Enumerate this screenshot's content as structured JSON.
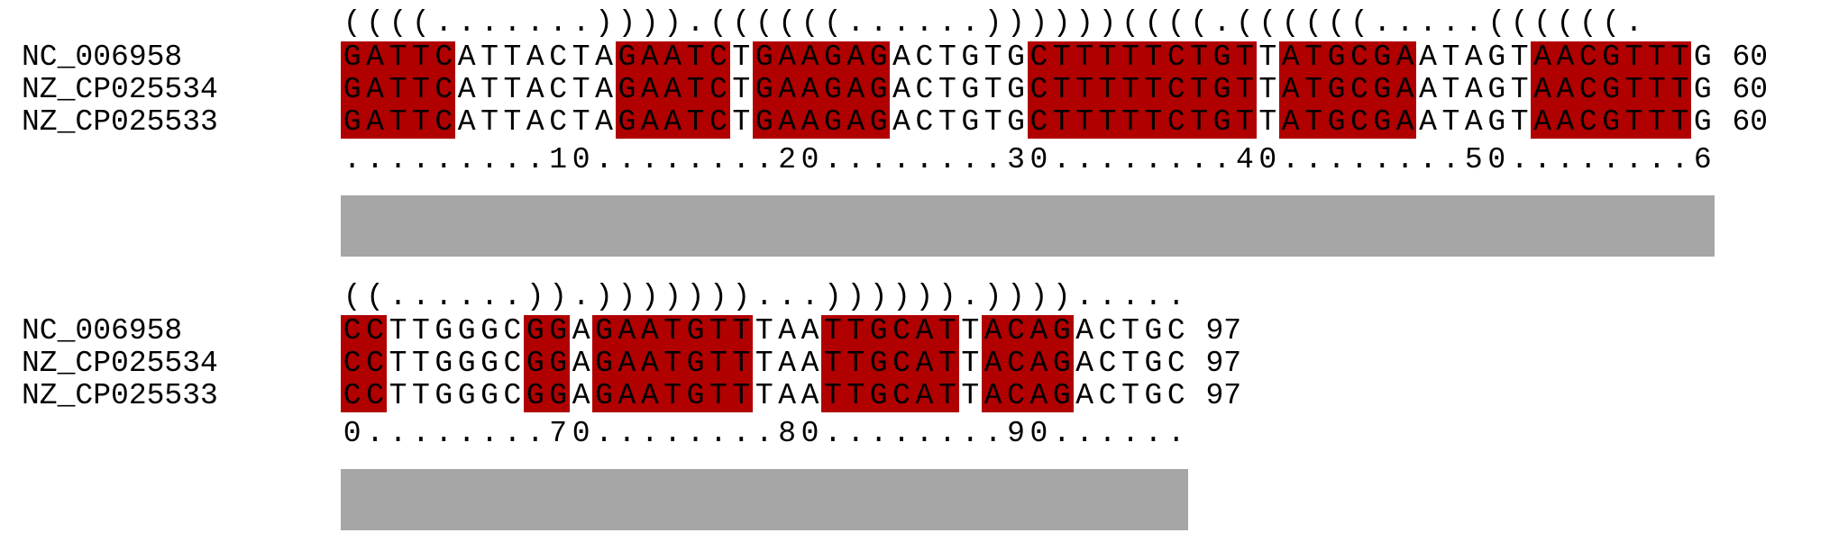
{
  "alignment": {
    "highlight_color": "#b00000",
    "conservation_color": "#a6a6a6",
    "blocks": [
      {
        "structure": "((((.......)))).((((((......))))))((((.((((((.....((((((.",
        "ruler": ".........10........20........30........40........50........6",
        "conservation": 1.0,
        "sequences": [
          {
            "name": "NC_006958",
            "seq": "GATTCATTACTAGAATCTGAAGAGACTGTGCTTTTTCTGTTATGCGAATAGTAACGTTTG",
            "end": "60"
          },
          {
            "name": "NZ_CP025534",
            "seq": "GATTCATTACTAGAATCTGAAGAGACTGTGCTTTTTCTGTTATGCGAATAGTAACGTTTG",
            "end": "60"
          },
          {
            "name": "NZ_CP025533",
            "seq": "GATTCATTACTAGAATCTGAAGAGACTGTGCTTTTTCTGTTATGCGAATAGTAACGTTTG",
            "end": "60"
          }
        ],
        "highlight_ranges": [
          [
            0,
            4
          ],
          [
            12,
            16
          ],
          [
            18,
            23
          ],
          [
            30,
            39
          ],
          [
            41,
            46
          ],
          [
            52,
            58
          ]
        ]
      },
      {
        "structure": "((......)).)))))))...)))))).)))).....",
        "ruler": "0........70........80........90......",
        "conservation": 1.0,
        "sequences": [
          {
            "name": "NC_006958",
            "seq": "CCTTGGGCGGAGAATGTTTAATTGCATTACAGACTGC",
            "end": "97"
          },
          {
            "name": "NZ_CP025534",
            "seq": "CCTTGGGCGGAGAATGTTTAATTGCATTACAGACTGC",
            "end": "97"
          },
          {
            "name": "NZ_CP025533",
            "seq": "CCTTGGGCGGAGAATGTTTAATTGCATTACAGACTGC",
            "end": "97"
          }
        ],
        "highlight_ranges": [
          [
            0,
            1
          ],
          [
            8,
            9
          ],
          [
            11,
            17
          ],
          [
            21,
            26
          ],
          [
            28,
            31
          ]
        ]
      }
    ]
  }
}
